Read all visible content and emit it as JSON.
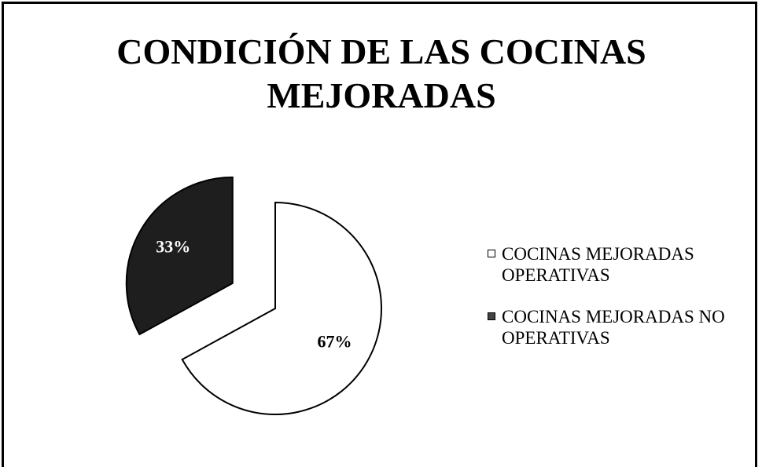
{
  "chart_data": {
    "type": "pie",
    "title": "CONDICIÓN DE LAS COCINAS MEJORADAS",
    "categories": [
      "COCINAS MEJORADAS OPERATIVAS",
      "COCINAS MEJORADAS NO OPERATIVAS"
    ],
    "values": [
      67,
      33
    ],
    "value_labels": [
      "67%",
      "33%"
    ],
    "colors": [
      "#ffffff",
      "#1e1e1e"
    ],
    "legend": "right"
  }
}
